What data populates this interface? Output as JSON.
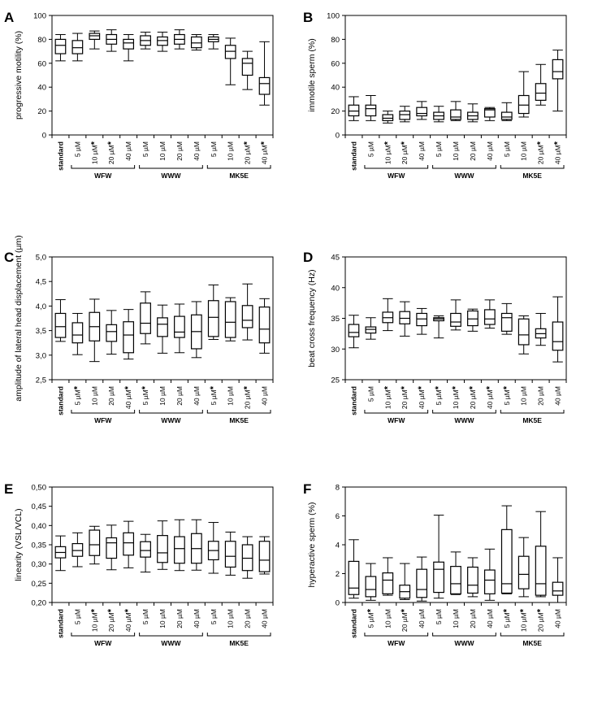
{
  "chart_data": [
    {
      "panel": "A",
      "type": "boxplot",
      "ylabel": "progressive motility (%)",
      "ylim": [
        0,
        100
      ],
      "yticks": [
        "0",
        "20",
        "40",
        "60",
        "80",
        "100"
      ],
      "categories": [
        "standard",
        "5 µM",
        "10 µM",
        "20 µM",
        "40 µM",
        "5 µM",
        "10 µM",
        "20 µM",
        "40 µM",
        "5 µM",
        "10 µM",
        "20 µM",
        "40 µM"
      ],
      "significant": [
        false,
        false,
        true,
        true,
        false,
        false,
        false,
        false,
        false,
        false,
        false,
        true,
        true
      ],
      "groups": [
        {
          "label": "WFW",
          "from": 1,
          "to": 4
        },
        {
          "label": "WWW",
          "from": 5,
          "to": 8
        },
        {
          "label": "MK5E",
          "from": 9,
          "to": 12
        }
      ],
      "boxes": [
        [
          62,
          68,
          75,
          80,
          84
        ],
        [
          62,
          68,
          73,
          79,
          85
        ],
        [
          72,
          80,
          83,
          85,
          87
        ],
        [
          70,
          76,
          80,
          84,
          88
        ],
        [
          62,
          72,
          77,
          80,
          84
        ],
        [
          72,
          75,
          79,
          83,
          86
        ],
        [
          70,
          75,
          79,
          82,
          86
        ],
        [
          72,
          76,
          80,
          84,
          88
        ],
        [
          71,
          73,
          77,
          82,
          84
        ],
        [
          72,
          78,
          80,
          82,
          84
        ],
        [
          42,
          64,
          70,
          75,
          81
        ],
        [
          38,
          50,
          60,
          64,
          70
        ],
        [
          25,
          34,
          43,
          48,
          78
        ]
      ]
    },
    {
      "panel": "B",
      "type": "boxplot",
      "ylabel": "immotile sperm (%)",
      "ylim": [
        0,
        100
      ],
      "yticks": [
        "0",
        "20",
        "40",
        "60",
        "80",
        "100"
      ],
      "categories": [
        "standard",
        "5 µM",
        "10 µM",
        "20 µM",
        "40 µM",
        "5 µM",
        "10 µM",
        "20 µM",
        "40 µM",
        "5 µM",
        "10 µM",
        "20 µM",
        "40 µM"
      ],
      "significant": [
        false,
        false,
        true,
        true,
        false,
        false,
        false,
        false,
        false,
        false,
        false,
        true,
        true
      ],
      "groups": [
        {
          "label": "WFW",
          "from": 1,
          "to": 4
        },
        {
          "label": "WWW",
          "from": 5,
          "to": 8
        },
        {
          "label": "MK5E",
          "from": 9,
          "to": 12
        }
      ],
      "boxes": [
        [
          12,
          16,
          20,
          25,
          32
        ],
        [
          12,
          16,
          22,
          25,
          33
        ],
        [
          10,
          12,
          14,
          17,
          20
        ],
        [
          11,
          13,
          17,
          20,
          24
        ],
        [
          13,
          16,
          18,
          23,
          28
        ],
        [
          11,
          13,
          16,
          19,
          24
        ],
        [
          12,
          13,
          15,
          21,
          28
        ],
        [
          11,
          13,
          16,
          19,
          26
        ],
        [
          12,
          15,
          21,
          22,
          23
        ],
        [
          12,
          13,
          15,
          19,
          27
        ],
        [
          15,
          18,
          25,
          33,
          53
        ],
        [
          25,
          29,
          35,
          43,
          59
        ],
        [
          20,
          47,
          53,
          63,
          71
        ]
      ]
    },
    {
      "panel": "C",
      "type": "boxplot",
      "ylabel": "amplitude of lateral head displacement  (µm)",
      "ylim": [
        2.5,
        5.0
      ],
      "yticks": [
        "2,5",
        "3,0",
        "3,5",
        "4,0",
        "4,5",
        "5,0"
      ],
      "categories": [
        "standard",
        "5 µM",
        "10 µM",
        "20 µM",
        "40 µM",
        "5 µM",
        "10 µM",
        "20 µM",
        "40 µM",
        "5 µM",
        "10 µM",
        "20 µM",
        "40 µM"
      ],
      "significant": [
        false,
        true,
        false,
        false,
        true,
        true,
        false,
        false,
        false,
        true,
        false,
        true,
        false
      ],
      "groups": [
        {
          "label": "WFW",
          "from": 1,
          "to": 4
        },
        {
          "label": "WWW",
          "from": 5,
          "to": 8
        },
        {
          "label": "MK5E",
          "from": 9,
          "to": 12
        }
      ],
      "boxes": [
        [
          3.28,
          3.36,
          3.58,
          3.85,
          4.13
        ],
        [
          3.01,
          3.25,
          3.41,
          3.66,
          3.85
        ],
        [
          2.87,
          3.29,
          3.58,
          3.87,
          4.14
        ],
        [
          3.02,
          3.28,
          3.48,
          3.62,
          3.91
        ],
        [
          2.92,
          3.05,
          3.41,
          3.68,
          3.93
        ],
        [
          3.23,
          3.44,
          3.65,
          4.06,
          4.29
        ],
        [
          3.04,
          3.38,
          3.63,
          3.76,
          4.02
        ],
        [
          3.05,
          3.36,
          3.47,
          3.79,
          4.04
        ],
        [
          2.95,
          3.13,
          3.48,
          3.82,
          4.09
        ],
        [
          3.32,
          3.38,
          3.77,
          4.11,
          4.43
        ],
        [
          3.29,
          3.36,
          3.67,
          4.09,
          4.17
        ],
        [
          3.31,
          3.56,
          3.71,
          4.01,
          4.45
        ],
        [
          3.04,
          3.25,
          3.53,
          3.98,
          4.15
        ]
      ]
    },
    {
      "panel": "D",
      "type": "boxplot",
      "ylabel": "beat cross frequency (Hz)",
      "ylim": [
        25,
        45
      ],
      "yticks": [
        "25",
        "30",
        "35",
        "40",
        "45"
      ],
      "categories": [
        "standard",
        "5 µM",
        "10 µM",
        "20 µM",
        "40 µM",
        "5 µM",
        "10 µM",
        "20 µM",
        "40 µM",
        "5 µM",
        "10 µM",
        "20 µM",
        "40 µM"
      ],
      "significant": [
        false,
        false,
        true,
        true,
        true,
        true,
        true,
        true,
        true,
        true,
        false,
        false,
        false
      ],
      "groups": [
        {
          "label": "WFW",
          "from": 1,
          "to": 4
        },
        {
          "label": "WWW",
          "from": 5,
          "to": 8
        },
        {
          "label": "MK5E",
          "from": 9,
          "to": 12
        }
      ],
      "boxes": [
        [
          30.2,
          32.0,
          32.7,
          34.0,
          35.5
        ],
        [
          31.6,
          32.6,
          33.2,
          33.6,
          35.1
        ],
        [
          33.0,
          34.3,
          35.1,
          36.0,
          38.2
        ],
        [
          32.1,
          34.1,
          35.0,
          36.1,
          37.7
        ],
        [
          32.4,
          33.8,
          34.9,
          35.8,
          36.6
        ],
        [
          31.8,
          34.6,
          34.9,
          35.1,
          35.4
        ],
        [
          33.1,
          33.7,
          34.4,
          35.8,
          38.0
        ],
        [
          32.9,
          33.8,
          34.9,
          36.2,
          36.5
        ],
        [
          33.4,
          34.0,
          34.9,
          36.4,
          38.0
        ],
        [
          32.4,
          32.9,
          35.1,
          35.8,
          37.4
        ],
        [
          29.2,
          30.7,
          32.3,
          34.9,
          35.4
        ],
        [
          30.6,
          31.8,
          32.5,
          33.3,
          35.8
        ],
        [
          27.9,
          29.8,
          31.2,
          34.4,
          38.5
        ]
      ]
    },
    {
      "panel": "E",
      "type": "boxplot",
      "ylabel": "linearity (VSL/VCL)",
      "ylim": [
        0.2,
        0.5
      ],
      "yticks": [
        "0,20",
        "0,25",
        "0,30",
        "0,35",
        "0,40",
        "0,45",
        "0,50"
      ],
      "categories": [
        "standard",
        "5 µM",
        "10 µM",
        "20 µM",
        "40 µM",
        "5 µM",
        "10 µM",
        "20 µM",
        "40 µM",
        "5 µM",
        "10 µM",
        "20 µM",
        "40 µM"
      ],
      "significant": [
        false,
        false,
        true,
        true,
        true,
        false,
        false,
        false,
        false,
        false,
        false,
        false,
        false
      ],
      "groups": [
        {
          "label": "WFW",
          "from": 1,
          "to": 4
        },
        {
          "label": "WWW",
          "from": 5,
          "to": 8
        },
        {
          "label": "MK5E",
          "from": 9,
          "to": 12
        }
      ],
      "boxes": [
        [
          0.283,
          0.316,
          0.33,
          0.345,
          0.373
        ],
        [
          0.293,
          0.32,
          0.335,
          0.353,
          0.381
        ],
        [
          0.3,
          0.322,
          0.35,
          0.388,
          0.398
        ],
        [
          0.285,
          0.315,
          0.355,
          0.368,
          0.401
        ],
        [
          0.29,
          0.323,
          0.355,
          0.381,
          0.411
        ],
        [
          0.279,
          0.318,
          0.335,
          0.358,
          0.377
        ],
        [
          0.286,
          0.304,
          0.329,
          0.374,
          0.412
        ],
        [
          0.283,
          0.302,
          0.34,
          0.371,
          0.415
        ],
        [
          0.284,
          0.302,
          0.34,
          0.379,
          0.415
        ],
        [
          0.276,
          0.311,
          0.335,
          0.359,
          0.408
        ],
        [
          0.271,
          0.292,
          0.32,
          0.359,
          0.383
        ],
        [
          0.263,
          0.283,
          0.315,
          0.35,
          0.371
        ],
        [
          0.274,
          0.28,
          0.31,
          0.359,
          0.371
        ]
      ]
    },
    {
      "panel": "F",
      "type": "boxplot",
      "ylabel": "hyperactive sperm (%)",
      "ylim": [
        0,
        8
      ],
      "yticks": [
        "0",
        "2",
        "4",
        "6",
        "8"
      ],
      "categories": [
        "standard",
        "5 µM",
        "10 µM",
        "20 µM",
        "40 µM",
        "5 µM",
        "10 µM",
        "20 µM",
        "40 µM",
        "5 µM",
        "10 µM",
        "20 µM",
        "40 µM"
      ],
      "significant": [
        false,
        true,
        false,
        true,
        false,
        false,
        false,
        false,
        false,
        true,
        true,
        true,
        false
      ],
      "groups": [
        {
          "label": "WFW",
          "from": 1,
          "to": 4
        },
        {
          "label": "WWW",
          "from": 5,
          "to": 8
        },
        {
          "label": "MK5E",
          "from": 9,
          "to": 12
        }
      ],
      "boxes": [
        [
          0.3,
          0.55,
          1.0,
          2.85,
          4.35
        ],
        [
          0.15,
          0.4,
          0.9,
          1.8,
          2.7
        ],
        [
          0.5,
          0.6,
          1.55,
          2.05,
          3.1
        ],
        [
          0.2,
          0.3,
          0.75,
          1.2,
          2.7
        ],
        [
          0.1,
          0.35,
          0.9,
          2.3,
          3.15
        ],
        [
          0.3,
          0.7,
          2.3,
          2.8,
          6.05
        ],
        [
          0.55,
          0.6,
          1.3,
          2.5,
          3.5
        ],
        [
          0.4,
          0.65,
          1.2,
          2.45,
          3.1
        ],
        [
          0.15,
          0.6,
          1.55,
          2.25,
          3.7
        ],
        [
          0.6,
          0.65,
          1.3,
          5.05,
          6.7
        ],
        [
          0.4,
          0.95,
          1.95,
          3.2,
          4.5
        ],
        [
          0.4,
          0.5,
          1.3,
          3.9,
          6.3
        ],
        [
          0.0,
          0.5,
          0.8,
          1.4,
          3.1
        ]
      ]
    }
  ]
}
